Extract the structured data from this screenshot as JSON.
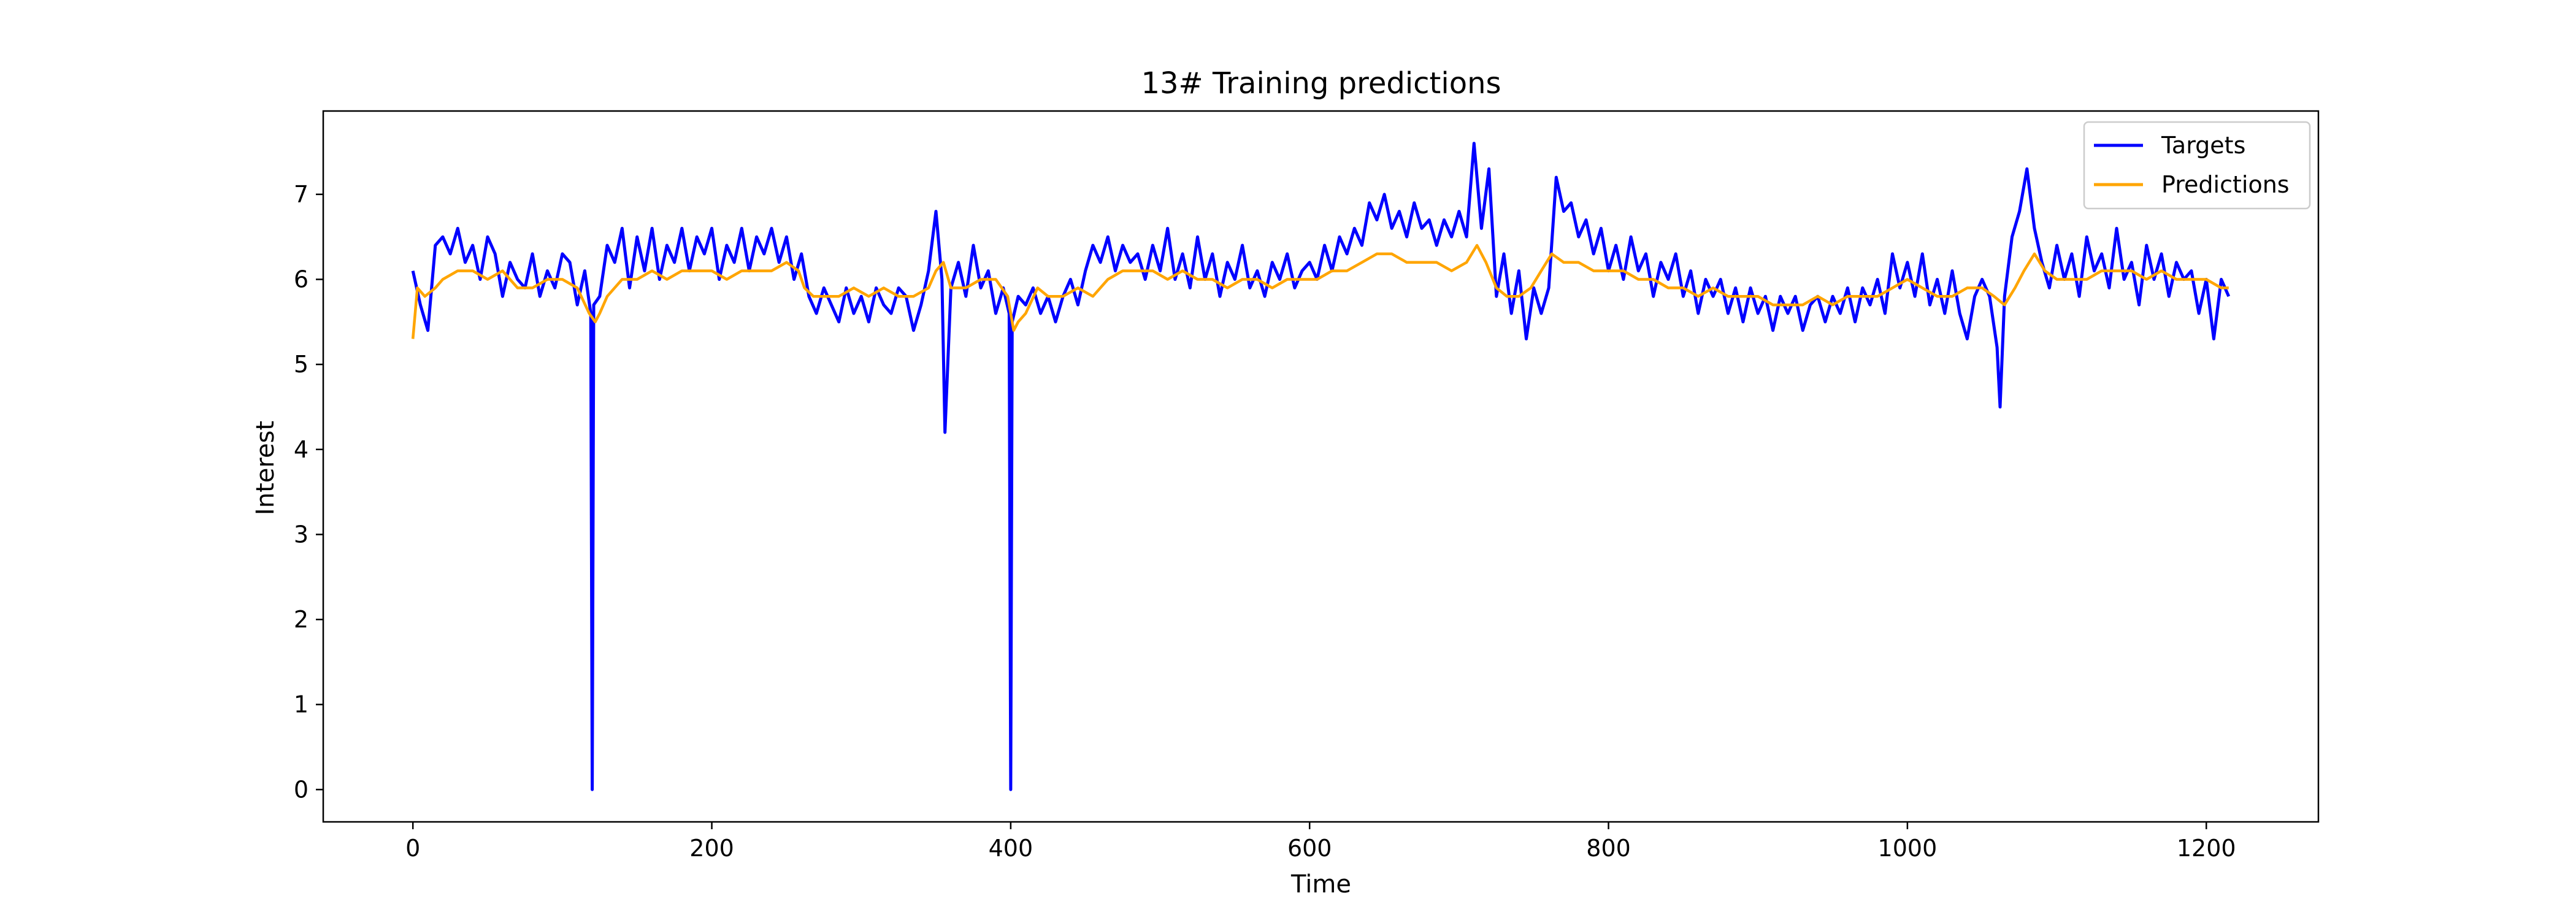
{
  "chart_data": {
    "type": "line",
    "title": "13# Training predictions",
    "xlabel": "Time",
    "ylabel": "Interest",
    "xlim": [
      -60,
      1275
    ],
    "ylim": [
      -0.38,
      7.98
    ],
    "xticks": [
      0,
      200,
      400,
      600,
      800,
      1000,
      1200
    ],
    "yticks": [
      0,
      1,
      2,
      3,
      4,
      5,
      6,
      7
    ],
    "legend": {
      "position": "top-right"
    },
    "grid": false,
    "series": [
      {
        "name": "Targets",
        "color": "#0000ff",
        "x": [
          0,
          5,
          10,
          15,
          20,
          25,
          30,
          35,
          40,
          45,
          50,
          55,
          60,
          65,
          70,
          75,
          80,
          85,
          90,
          95,
          100,
          105,
          110,
          115,
          119,
          120,
          121,
          125,
          130,
          135,
          140,
          145,
          150,
          155,
          160,
          165,
          170,
          175,
          180,
          185,
          190,
          195,
          200,
          205,
          210,
          215,
          220,
          225,
          230,
          235,
          240,
          245,
          250,
          255,
          260,
          265,
          270,
          275,
          280,
          285,
          290,
          295,
          300,
          305,
          310,
          315,
          320,
          325,
          330,
          335,
          340,
          345,
          350,
          354,
          356,
          360,
          365,
          370,
          375,
          380,
          385,
          390,
          395,
          399,
          400,
          401,
          405,
          410,
          415,
          420,
          425,
          430,
          435,
          440,
          445,
          450,
          455,
          460,
          465,
          470,
          475,
          480,
          485,
          490,
          495,
          500,
          505,
          510,
          515,
          520,
          525,
          530,
          535,
          540,
          545,
          550,
          555,
          560,
          565,
          570,
          575,
          580,
          585,
          590,
          595,
          600,
          605,
          610,
          615,
          620,
          625,
          630,
          635,
          640,
          645,
          650,
          655,
          660,
          665,
          670,
          675,
          680,
          685,
          690,
          695,
          700,
          705,
          710,
          715,
          720,
          725,
          730,
          735,
          740,
          745,
          750,
          755,
          760,
          765,
          770,
          775,
          780,
          785,
          790,
          795,
          800,
          805,
          810,
          815,
          820,
          825,
          830,
          835,
          840,
          845,
          850,
          855,
          860,
          865,
          870,
          875,
          880,
          885,
          890,
          895,
          900,
          905,
          910,
          915,
          920,
          925,
          930,
          935,
          940,
          945,
          950,
          955,
          960,
          965,
          970,
          975,
          980,
          985,
          990,
          995,
          1000,
          1005,
          1010,
          1015,
          1020,
          1025,
          1030,
          1035,
          1040,
          1045,
          1050,
          1055,
          1060,
          1062,
          1065,
          1070,
          1075,
          1080,
          1085,
          1090,
          1095,
          1100,
          1105,
          1110,
          1115,
          1120,
          1125,
          1130,
          1135,
          1140,
          1145,
          1150,
          1155,
          1160,
          1165,
          1170,
          1175,
          1180,
          1185,
          1190,
          1195,
          1200,
          1205,
          1210,
          1215
        ],
        "values": [
          6.1,
          5.7,
          5.4,
          6.4,
          6.5,
          6.3,
          6.6,
          6.2,
          6.4,
          6.0,
          6.5,
          6.3,
          5.8,
          6.2,
          6.0,
          5.9,
          6.3,
          5.8,
          6.1,
          5.9,
          6.3,
          6.2,
          5.7,
          6.1,
          5.6,
          0.0,
          5.7,
          5.8,
          6.4,
          6.2,
          6.6,
          5.9,
          6.5,
          6.1,
          6.6,
          6.0,
          6.4,
          6.2,
          6.6,
          6.1,
          6.5,
          6.3,
          6.6,
          6.0,
          6.4,
          6.2,
          6.6,
          6.1,
          6.5,
          6.3,
          6.6,
          6.2,
          6.5,
          6.0,
          6.3,
          5.8,
          5.6,
          5.9,
          5.7,
          5.5,
          5.9,
          5.6,
          5.8,
          5.5,
          5.9,
          5.7,
          5.6,
          5.9,
          5.8,
          5.4,
          5.7,
          6.1,
          6.8,
          6.0,
          4.2,
          5.9,
          6.2,
          5.8,
          6.4,
          5.9,
          6.1,
          5.6,
          5.9,
          5.6,
          0.0,
          5.5,
          5.8,
          5.7,
          5.9,
          5.6,
          5.8,
          5.5,
          5.8,
          6.0,
          5.7,
          6.1,
          6.4,
          6.2,
          6.5,
          6.1,
          6.4,
          6.2,
          6.3,
          6.0,
          6.4,
          6.1,
          6.6,
          6.0,
          6.3,
          5.9,
          6.5,
          6.0,
          6.3,
          5.8,
          6.2,
          6.0,
          6.4,
          5.9,
          6.1,
          5.8,
          6.2,
          6.0,
          6.3,
          5.9,
          6.1,
          6.2,
          6.0,
          6.4,
          6.1,
          6.5,
          6.3,
          6.6,
          6.4,
          6.9,
          6.7,
          7.0,
          6.6,
          6.8,
          6.5,
          6.9,
          6.6,
          6.7,
          6.4,
          6.7,
          6.5,
          6.8,
          6.5,
          7.6,
          6.6,
          7.3,
          5.8,
          6.3,
          5.6,
          6.1,
          5.3,
          5.9,
          5.6,
          5.9,
          7.2,
          6.8,
          6.9,
          6.5,
          6.7,
          6.3,
          6.6,
          6.1,
          6.4,
          6.0,
          6.5,
          6.1,
          6.3,
          5.8,
          6.2,
          6.0,
          6.3,
          5.8,
          6.1,
          5.6,
          6.0,
          5.8,
          6.0,
          5.6,
          5.9,
          5.5,
          5.9,
          5.6,
          5.8,
          5.4,
          5.8,
          5.6,
          5.8,
          5.4,
          5.7,
          5.8,
          5.5,
          5.8,
          5.6,
          5.9,
          5.5,
          5.9,
          5.7,
          6.0,
          5.6,
          6.3,
          5.9,
          6.2,
          5.8,
          6.3,
          5.7,
          6.0,
          5.6,
          6.1,
          5.6,
          5.3,
          5.8,
          6.0,
          5.8,
          5.2,
          4.5,
          5.8,
          6.5,
          6.8,
          7.3,
          6.6,
          6.2,
          5.9,
          6.4,
          6.0,
          6.3,
          5.8,
          6.5,
          6.1,
          6.3,
          5.9,
          6.6,
          6.0,
          6.2,
          5.7,
          6.4,
          6.0,
          6.3,
          5.8,
          6.2,
          6.0,
          6.1,
          5.6,
          6.0,
          5.3,
          6.0,
          5.8
        ]
      },
      {
        "name": "Predictions",
        "color": "#ffa500",
        "x": [
          0,
          3,
          8,
          15,
          20,
          30,
          40,
          50,
          60,
          70,
          80,
          90,
          100,
          110,
          118,
          122,
          125,
          130,
          140,
          150,
          160,
          170,
          180,
          190,
          200,
          210,
          220,
          230,
          240,
          250,
          258,
          262,
          268,
          275,
          285,
          295,
          305,
          315,
          325,
          335,
          345,
          350,
          355,
          360,
          370,
          380,
          390,
          398,
          402,
          405,
          410,
          418,
          425,
          435,
          445,
          455,
          465,
          475,
          485,
          495,
          505,
          515,
          525,
          535,
          545,
          555,
          565,
          575,
          585,
          595,
          605,
          615,
          625,
          635,
          645,
          655,
          665,
          675,
          685,
          695,
          705,
          712,
          718,
          725,
          732,
          740,
          748,
          755,
          762,
          770,
          780,
          790,
          800,
          810,
          820,
          830,
          840,
          850,
          860,
          870,
          880,
          890,
          900,
          910,
          920,
          930,
          940,
          950,
          960,
          970,
          980,
          990,
          1000,
          1010,
          1020,
          1030,
          1040,
          1050,
          1058,
          1065,
          1072,
          1078,
          1085,
          1092,
          1100,
          1110,
          1120,
          1130,
          1140,
          1150,
          1160,
          1170,
          1180,
          1190,
          1200,
          1210,
          1215
        ],
        "values": [
          5.3,
          5.9,
          5.8,
          5.9,
          6.0,
          6.1,
          6.1,
          6.0,
          6.1,
          5.9,
          5.9,
          6.0,
          6.0,
          5.9,
          5.6,
          5.5,
          5.6,
          5.8,
          6.0,
          6.0,
          6.1,
          6.0,
          6.1,
          6.1,
          6.1,
          6.0,
          6.1,
          6.1,
          6.1,
          6.2,
          6.1,
          5.9,
          5.8,
          5.8,
          5.8,
          5.9,
          5.8,
          5.9,
          5.8,
          5.8,
          5.9,
          6.1,
          6.2,
          5.9,
          5.9,
          6.0,
          6.0,
          5.8,
          5.4,
          5.5,
          5.6,
          5.9,
          5.8,
          5.8,
          5.9,
          5.8,
          6.0,
          6.1,
          6.1,
          6.1,
          6.0,
          6.1,
          6.0,
          6.0,
          5.9,
          6.0,
          6.0,
          5.9,
          6.0,
          6.0,
          6.0,
          6.1,
          6.1,
          6.2,
          6.3,
          6.3,
          6.2,
          6.2,
          6.2,
          6.1,
          6.2,
          6.4,
          6.2,
          5.9,
          5.8,
          5.8,
          5.9,
          6.1,
          6.3,
          6.2,
          6.2,
          6.1,
          6.1,
          6.1,
          6.0,
          6.0,
          5.9,
          5.9,
          5.8,
          5.9,
          5.8,
          5.8,
          5.8,
          5.7,
          5.7,
          5.7,
          5.8,
          5.7,
          5.8,
          5.8,
          5.8,
          5.9,
          6.0,
          5.9,
          5.8,
          5.8,
          5.9,
          5.9,
          5.8,
          5.7,
          5.9,
          6.1,
          6.3,
          6.1,
          6.0,
          6.0,
          6.0,
          6.1,
          6.1,
          6.1,
          6.0,
          6.1,
          6.0,
          6.0,
          6.0,
          5.9,
          5.9
        ]
      }
    ]
  }
}
